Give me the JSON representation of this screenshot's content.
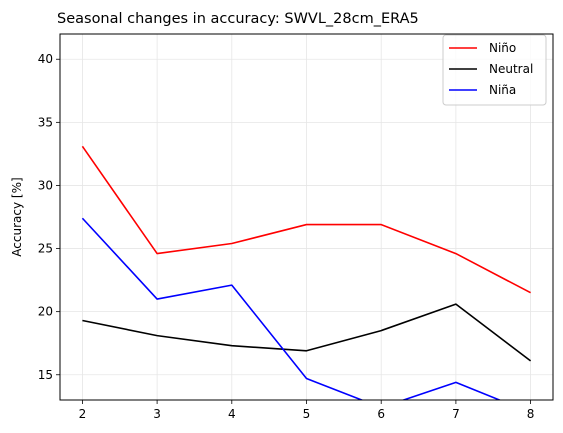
{
  "chart_data": {
    "type": "line",
    "title": "Seasonal changes in accuracy: SWVL_28cm_ERA5",
    "xlabel": "",
    "ylabel": "Accuracy [%]",
    "x": [
      2,
      3,
      4,
      5,
      6,
      7,
      8
    ],
    "xticks": [
      "2",
      "3",
      "4",
      "5",
      "6",
      "7",
      "8"
    ],
    "yticks": [
      "15",
      "20",
      "25",
      "30",
      "35",
      "40"
    ],
    "xlim": [
      1.7,
      8.3
    ],
    "ylim": [
      13,
      42
    ],
    "grid": true,
    "legend_position": "top-right",
    "series": [
      {
        "name": "Niño",
        "color": "#ff0000",
        "values": [
          33.1,
          24.6,
          25.4,
          26.9,
          26.9,
          24.6,
          21.5
        ]
      },
      {
        "name": "Neutral",
        "color": "#000000",
        "values": [
          19.3,
          18.1,
          17.3,
          16.9,
          18.5,
          20.6,
          16.1
        ]
      },
      {
        "name": "Niña",
        "color": "#0000ff",
        "values": [
          27.4,
          21.0,
          22.1,
          14.7,
          12.4,
          14.4,
          12.0
        ]
      }
    ]
  }
}
